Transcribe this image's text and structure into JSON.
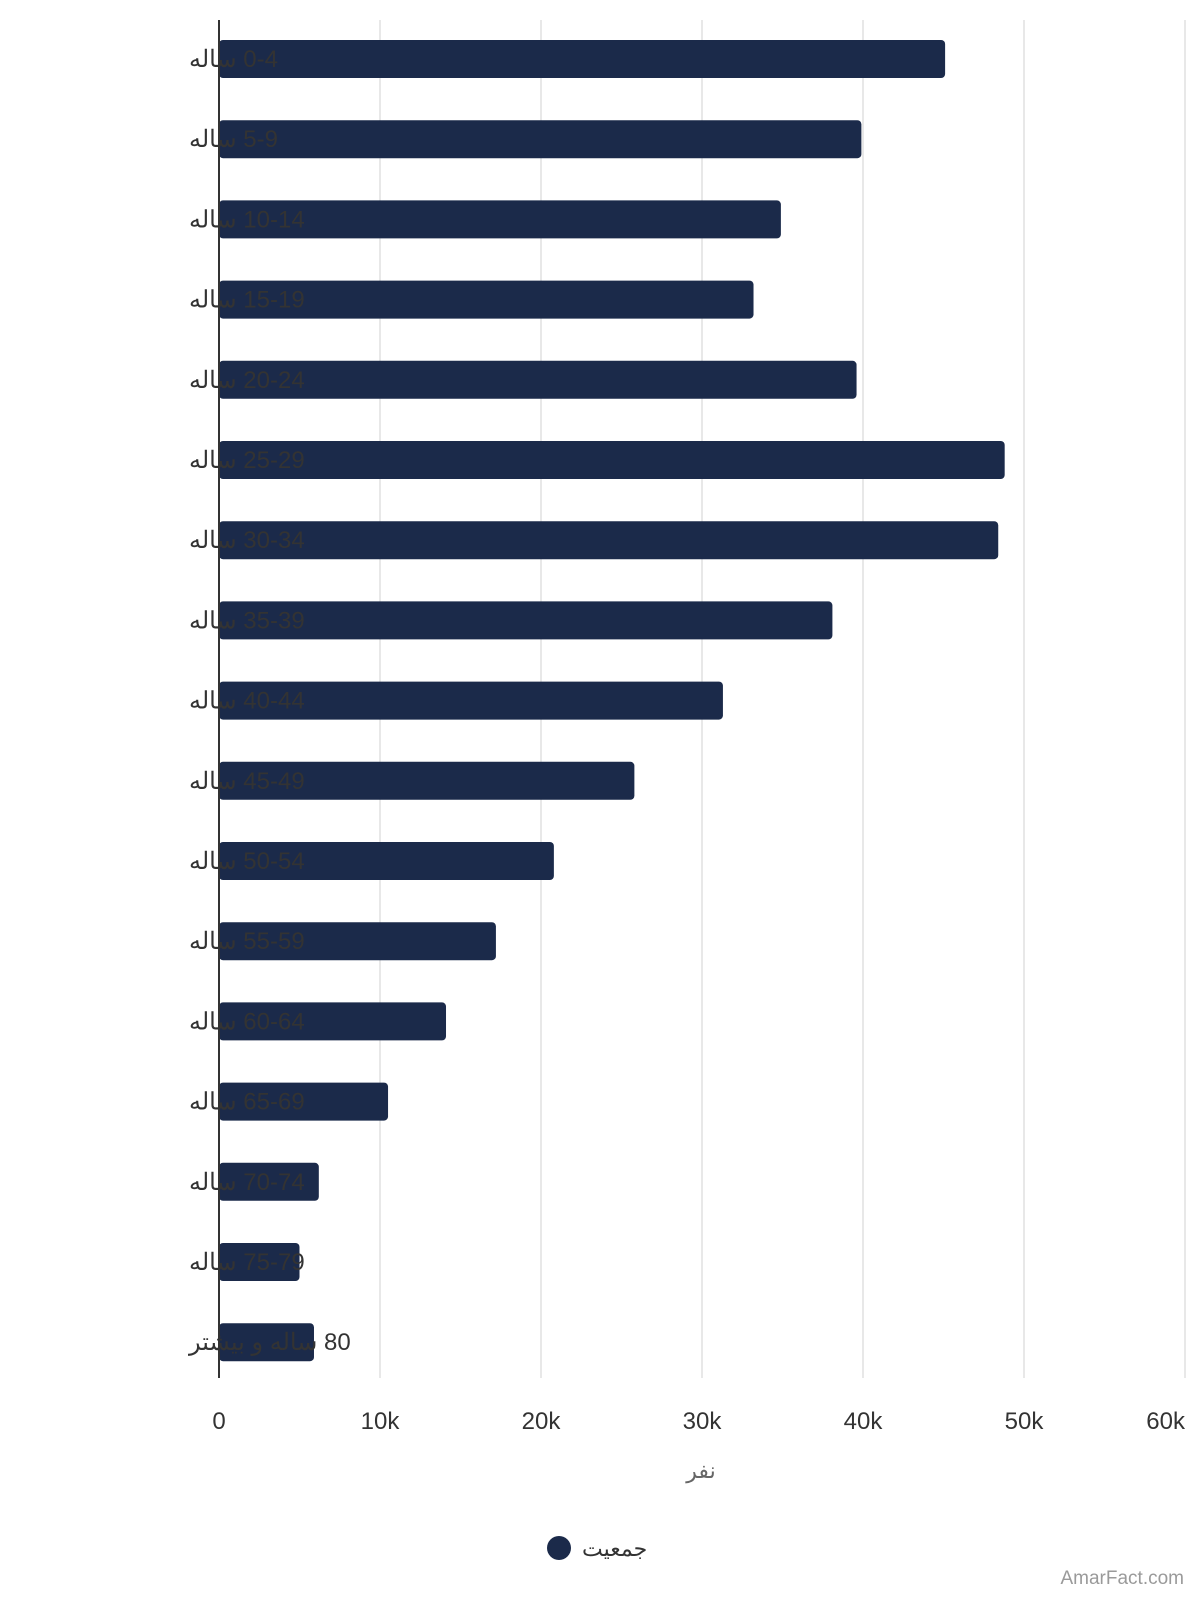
{
  "chart_data": {
    "type": "bar",
    "orientation": "horizontal",
    "categories": [
      "0-4 ساله",
      "5-9 ساله",
      "10-14 ساله",
      "15-19 ساله",
      "20-24 ساله",
      "25-29 ساله",
      "30-34 ساله",
      "35-39 ساله",
      "40-44 ساله",
      "45-49 ساله",
      "50-54 ساله",
      "55-59 ساله",
      "60-64 ساله",
      "65-69 ساله",
      "70-74 ساله",
      "75-79 ساله",
      "80 ساله و بیشتر"
    ],
    "series": [
      {
        "name": "جمعیت",
        "color": "#1b2a4a",
        "values": [
          45100,
          39900,
          34900,
          33200,
          39600,
          48800,
          48400,
          38100,
          31300,
          25800,
          20800,
          17200,
          14100,
          10500,
          6200,
          5000,
          5900
        ]
      }
    ],
    "xlim": [
      0,
      60000
    ],
    "xticks": [
      0,
      10000,
      20000,
      30000,
      40000,
      50000,
      60000
    ],
    "xtick_labels": [
      "0",
      "10k",
      "20k",
      "30k",
      "40k",
      "50k",
      "60k"
    ],
    "xlabel": "نفر",
    "legend_position": "bottom",
    "grid": true
  },
  "credit": "AmarFact.com"
}
